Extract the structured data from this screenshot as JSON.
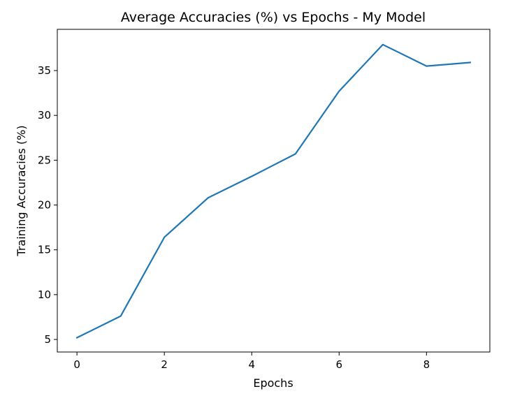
{
  "chart_data": {
    "type": "line",
    "title": "Average Accuracies (%) vs Epochs - My Model",
    "xlabel": "Epochs",
    "ylabel": "Training Accuracies (%)",
    "xlim": [
      -0.45,
      9.45
    ],
    "ylim": [
      3.6,
      39.6
    ],
    "xticks": [
      0,
      2,
      4,
      6,
      8
    ],
    "yticks": [
      5,
      10,
      15,
      20,
      25,
      30,
      35
    ],
    "grid": false,
    "series": [
      {
        "color": "#1f77b4",
        "x": [
          0,
          1,
          2,
          3,
          4,
          5,
          6,
          7,
          8,
          9
        ],
        "y": [
          5.2,
          7.6,
          16.4,
          20.8,
          23.2,
          25.7,
          32.7,
          37.9,
          35.5,
          35.9
        ]
      }
    ]
  }
}
